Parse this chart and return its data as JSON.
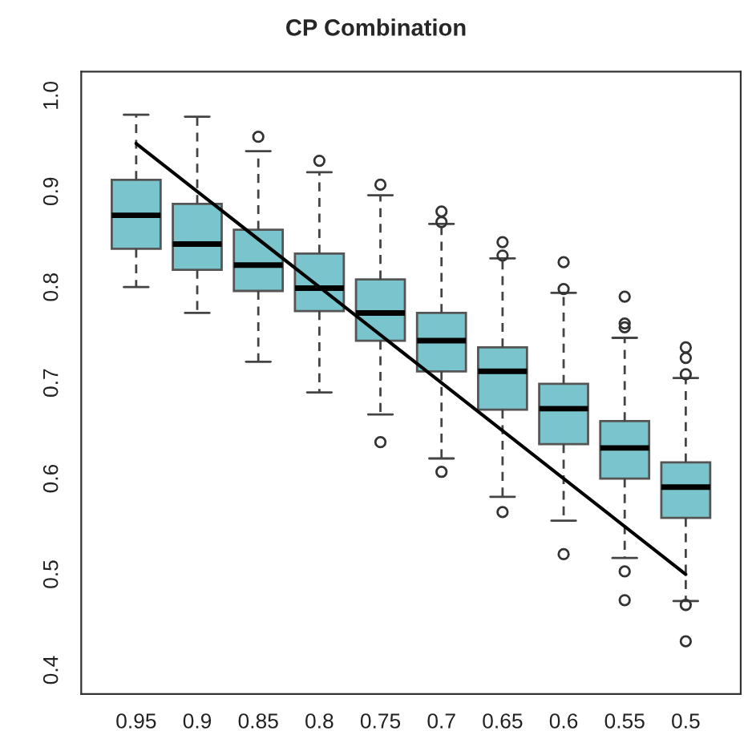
{
  "chart_data": {
    "type": "box",
    "title": "CP Combination",
    "categories": [
      "0.95",
      "0.9",
      "0.85",
      "0.8",
      "0.75",
      "0.7",
      "0.65",
      "0.6",
      "0.55",
      "0.5"
    ],
    "ylim": [
      0.375,
      1.025
    ],
    "yticks": [
      0.4,
      0.5,
      0.6,
      0.7,
      0.8,
      0.9,
      {
        "value": 1.0,
        "label": "1.0"
      }
    ],
    "grid": false,
    "legend": false,
    "series": [
      {
        "color": "#7ac5cd",
        "boxes": [
          {
            "low": 0.8,
            "q1": 0.84,
            "median": 0.875,
            "q3": 0.912,
            "high": 0.98
          },
          {
            "low": 0.773,
            "q1": 0.818,
            "median": 0.845,
            "q3": 0.887,
            "high": 0.978
          },
          {
            "low": 0.722,
            "q1": 0.796,
            "median": 0.823,
            "q3": 0.86,
            "high": 0.942,
            "outliers": [
              0.957
            ]
          },
          {
            "low": 0.69,
            "q1": 0.775,
            "median": 0.799,
            "q3": 0.835,
            "high": 0.92,
            "outliers": [
              0.932
            ]
          },
          {
            "low": 0.667,
            "q1": 0.744,
            "median": 0.773,
            "q3": 0.808,
            "high": 0.896,
            "outliers": [
              0.907,
              0.638
            ]
          },
          {
            "low": 0.621,
            "q1": 0.712,
            "median": 0.744,
            "q3": 0.773,
            "high": 0.866,
            "outliers": [
              0.879,
              0.868,
              0.607
            ]
          },
          {
            "low": 0.581,
            "q1": 0.672,
            "median": 0.712,
            "q3": 0.737,
            "high": 0.83,
            "outliers": [
              0.847,
              0.833,
              0.565
            ]
          },
          {
            "low": 0.556,
            "q1": 0.636,
            "median": 0.673,
            "q3": 0.699,
            "high": 0.794,
            "outliers": [
              0.826,
              0.798,
              0.521
            ]
          },
          {
            "low": 0.517,
            "q1": 0.6,
            "median": 0.632,
            "q3": 0.66,
            "high": 0.747,
            "outliers": [
              0.79,
              0.762,
              0.758,
              0.503,
              0.473
            ]
          },
          {
            "low": 0.472,
            "q1": 0.559,
            "median": 0.591,
            "q3": 0.617,
            "high": 0.705,
            "outliers": [
              0.737,
              0.726,
              0.709,
              0.468,
              0.43
            ]
          }
        ]
      },
      {
        "type": "line",
        "color": "#000000",
        "values": [
          0.95,
          0.9,
          0.85,
          0.8,
          0.75,
          0.7,
          0.65,
          0.6,
          0.55,
          0.5
        ]
      }
    ]
  }
}
